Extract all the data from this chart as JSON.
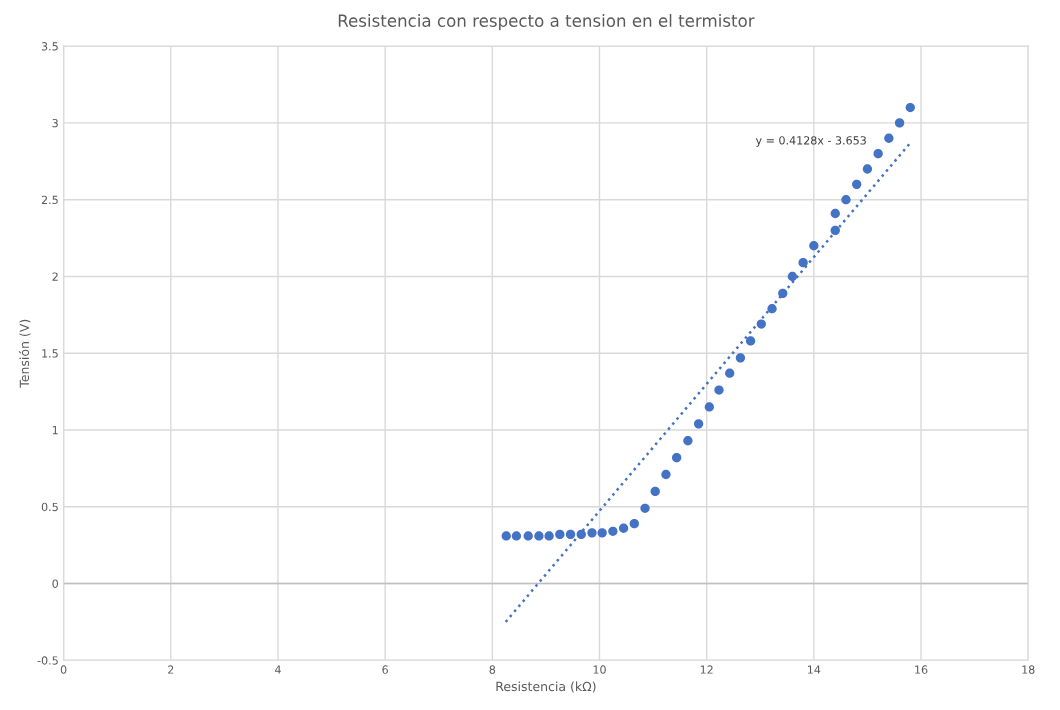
{
  "chart_data": {
    "type": "scatter",
    "title": "Resistencia con respecto a tension en el termistor",
    "xlabel": "Resistencia (kΩ)",
    "ylabel": "Tensión (V)",
    "xlim": [
      0,
      18
    ],
    "xticks": [
      0,
      2,
      4,
      6,
      8,
      10,
      12,
      14,
      16,
      18
    ],
    "ylim": [
      -0.5,
      3.5
    ],
    "yticks": [
      -0.5,
      0,
      0.5,
      1,
      1.5,
      2,
      2.5,
      3,
      3.5
    ],
    "grid": true,
    "legend": false,
    "marker": "circle",
    "series": [
      {
        "color": "#4472c4",
        "x": [
          8.26,
          8.45,
          8.67,
          8.87,
          9.06,
          9.26,
          9.46,
          9.66,
          9.86,
          10.05,
          10.25,
          10.45,
          10.65,
          10.85,
          11.04,
          11.24,
          11.44,
          11.65,
          11.85,
          12.05,
          12.23,
          12.43,
          12.63,
          12.82,
          13.02,
          13.22,
          13.42,
          13.6,
          13.8,
          14.0,
          14.4,
          14.4,
          14.6,
          14.8,
          15.0,
          15.2,
          15.4,
          15.6,
          15.8
        ],
        "values": [
          0.31,
          0.31,
          0.31,
          0.31,
          0.31,
          0.32,
          0.32,
          0.32,
          0.33,
          0.33,
          0.34,
          0.36,
          0.39,
          0.49,
          0.6,
          0.71,
          0.82,
          0.93,
          1.04,
          1.15,
          1.26,
          1.37,
          1.47,
          1.58,
          1.69,
          1.79,
          1.89,
          2.0,
          2.09,
          2.2,
          2.3,
          2.41,
          2.5,
          2.6,
          2.7,
          2.8,
          2.9,
          3.0,
          3.1
        ]
      },
      {
        "type": "line",
        "line_style": "dotted",
        "marker": "none",
        "color": "#4472c4",
        "x": [
          8.25,
          15.8
        ],
        "values": [
          -0.25,
          2.87
        ]
      }
    ],
    "annotations": [
      "y = 0.4128x - 3.653"
    ]
  }
}
